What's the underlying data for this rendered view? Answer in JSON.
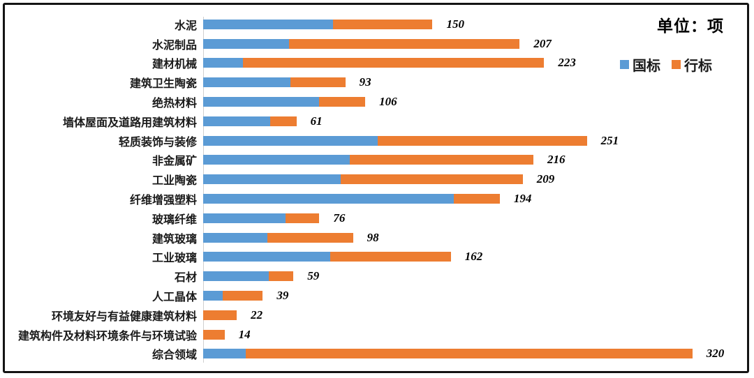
{
  "frame": {
    "unit_label": "单位：项"
  },
  "chart_data": {
    "type": "bar",
    "orientation": "horizontal",
    "stacked": true,
    "title": "",
    "xlabel": "",
    "ylabel": "",
    "unit": "项",
    "xlim": [
      0,
      320
    ],
    "grid": false,
    "legend_position": "top-right",
    "categories": [
      "水泥",
      "水泥制品",
      "建材机械",
      "建筑卫生陶瓷",
      "绝热材料",
      "墙体屋面及道路用建筑材料",
      "轻质装饰与装修",
      "非金属矿",
      "工业陶瓷",
      "纤维增强塑料",
      "玻璃纤维",
      "建筑玻璃",
      "工业玻璃",
      "石材",
      "人工晶体",
      "环境友好与有益健康建筑材料",
      "建筑构件及材料环境条件与环境试验",
      "综合领域"
    ],
    "series": [
      {
        "name": "国标",
        "color": "#5B9BD5",
        "values": [
          85,
          56,
          26,
          57,
          76,
          44,
          114,
          96,
          90,
          164,
          54,
          42,
          83,
          43,
          13,
          0,
          0,
          28
        ]
      },
      {
        "name": "行标",
        "color": "#ED7D31",
        "values": [
          65,
          151,
          197,
          36,
          30,
          17,
          137,
          120,
          119,
          30,
          22,
          56,
          79,
          16,
          26,
          22,
          14,
          292
        ]
      }
    ],
    "totals": [
      150,
      207,
      223,
      93,
      106,
      61,
      251,
      216,
      209,
      194,
      76,
      98,
      162,
      59,
      39,
      22,
      14,
      320
    ]
  }
}
